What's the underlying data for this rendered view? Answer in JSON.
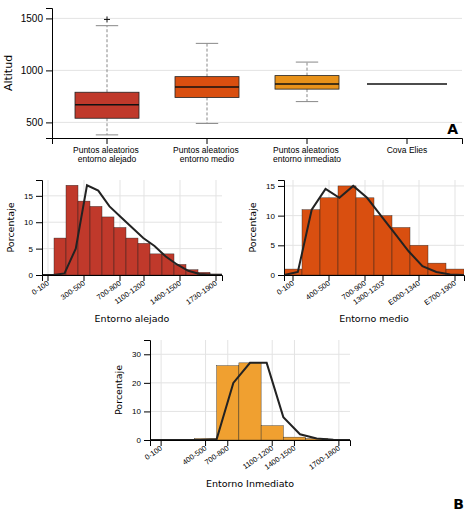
{
  "chart_data": [
    {
      "type": "box",
      "categories": [
        "Puntos aleatorios entorno alejado",
        "Puntos aleatorios entorno medio",
        "Puntos aleatorios entorno inmediato",
        "Cova Elies"
      ],
      "ylabel": "Altitud",
      "ylim": [
        350,
        1600
      ],
      "yticks": [
        500,
        1000,
        1500
      ],
      "colors": [
        "#c0392b",
        "#d94f10",
        "#e8921a"
      ],
      "grid": "y",
      "boxes": [
        {
          "q1": 540,
          "median": 670,
          "q3": 790,
          "whisker_low": 380,
          "whisker_high": 1430,
          "flier": 1490
        },
        {
          "q1": 740,
          "median": 840,
          "q3": 940,
          "whisker_low": 490,
          "whisker_high": 1260
        },
        {
          "q1": 820,
          "median": 870,
          "q3": 950,
          "whisker_low": 700,
          "whisker_high": 1080
        },
        {
          "value": 870
        }
      ],
      "annotations": [
        "A"
      ]
    },
    {
      "type": "bar",
      "xlabel": "Entorno alejado",
      "ylabel": "Porcentaje",
      "color": "#c0392b",
      "categories": [
        "0-100",
        null,
        null,
        "300-500",
        null,
        null,
        "700-800",
        null,
        "1100-1200",
        null,
        null,
        "1400-1500",
        null,
        null,
        "1730-1900"
      ],
      "values": [
        0,
        7,
        17,
        14,
        13,
        11,
        9,
        7,
        6,
        4,
        4,
        2,
        1,
        0.5,
        0.2
      ],
      "curve": [
        0,
        0,
        0.3,
        5,
        17,
        16,
        13,
        11,
        9,
        7,
        5.5,
        3.5,
        2,
        0.8,
        0.2,
        0.05,
        0
      ],
      "ylim": [
        0,
        18
      ],
      "yticks": [
        0,
        5,
        10,
        15
      ],
      "grid": true
    },
    {
      "type": "bar",
      "xlabel": "Entorno medio",
      "ylabel": "Porcentaje",
      "color": "#d94f10",
      "categories": [
        "0-100",
        null,
        "400-500",
        null,
        "700-900",
        "1300-1203",
        null,
        "E000-1340",
        null,
        "E700-1900"
      ],
      "values": [
        1,
        11,
        13,
        15,
        13,
        10,
        8,
        5,
        2,
        1
      ],
      "curve": [
        0,
        0.5,
        11,
        14.5,
        13,
        15,
        13,
        10,
        7,
        4,
        1.5,
        0.5,
        0.1,
        0
      ],
      "ylim": [
        0,
        16
      ],
      "yticks": [
        0,
        5,
        10,
        15
      ],
      "grid": true
    },
    {
      "type": "bar",
      "xlabel": "Entorno Inmediato",
      "ylabel": "Porcentaje",
      "color": "#f0a030",
      "categories": [
        "0-100",
        null,
        "400-500",
        "700-800",
        null,
        "1100-1200",
        "1400-1500",
        null,
        "1700-1800"
      ],
      "values": [
        0,
        0,
        0.5,
        26,
        27,
        5,
        1,
        0.5,
        0.2
      ],
      "curve": [
        0,
        0,
        0,
        0,
        0.3,
        20,
        27,
        27,
        8,
        2,
        0.5,
        0.1,
        0
      ],
      "ylim": [
        0,
        35
      ],
      "yticks": [
        0,
        10,
        20,
        30
      ],
      "grid": true,
      "annotations": [
        "B"
      ]
    }
  ]
}
